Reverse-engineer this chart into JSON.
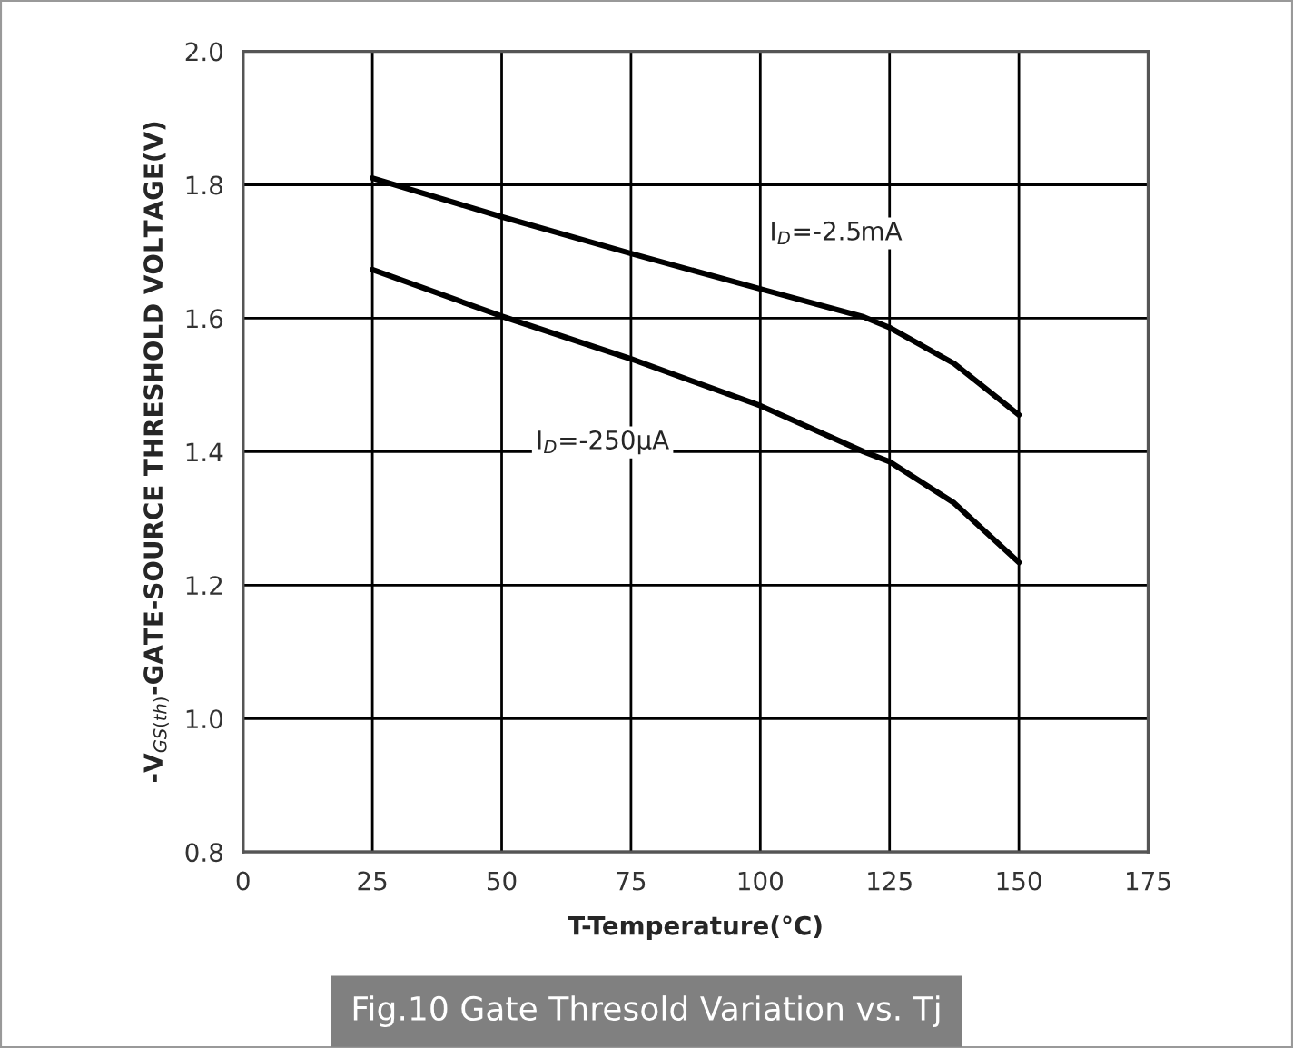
{
  "chart_data": {
    "type": "line",
    "title": "Fig.10 Gate Thresold Variation vs. Tj",
    "xlabel": "T-Temperature(°C)",
    "ylabel": "-V$_{GS(th)}$-GATE-SOURCE THRESHOLD VOLTAGE(V)",
    "x": [
      25,
      50,
      75,
      100,
      120,
      125,
      137.5,
      150
    ],
    "series": [
      {
        "name": "I$_{D}$=-2.5mA",
        "color": "#000000",
        "values": [
          1.81,
          1.752,
          1.697,
          1.644,
          1.602,
          1.586,
          1.532,
          1.455
        ]
      },
      {
        "name": "I$_{D}$=-250μA",
        "color": "#000000",
        "values": [
          1.673,
          1.603,
          1.539,
          1.469,
          1.4,
          1.385,
          1.323,
          1.234
        ]
      }
    ],
    "xlim": [
      0,
      175
    ],
    "xticks": [
      0,
      25,
      50,
      75,
      100,
      125,
      150,
      175
    ],
    "ylim": [
      0.8,
      2.0
    ],
    "yticks": [
      {
        "value": 0.8,
        "label": "0.8"
      },
      {
        "value": 1.0,
        "label": "1.0"
      },
      {
        "value": 1.2,
        "label": "1.2"
      },
      {
        "value": 1.4,
        "label": "1.4"
      },
      {
        "value": 1.6,
        "label": "1.6"
      },
      {
        "value": 1.8,
        "label": "1.8"
      },
      {
        "value": 2.0,
        "label": "2.0"
      }
    ],
    "grid": true,
    "legend": false,
    "marker": "none",
    "line_style": "solid"
  }
}
